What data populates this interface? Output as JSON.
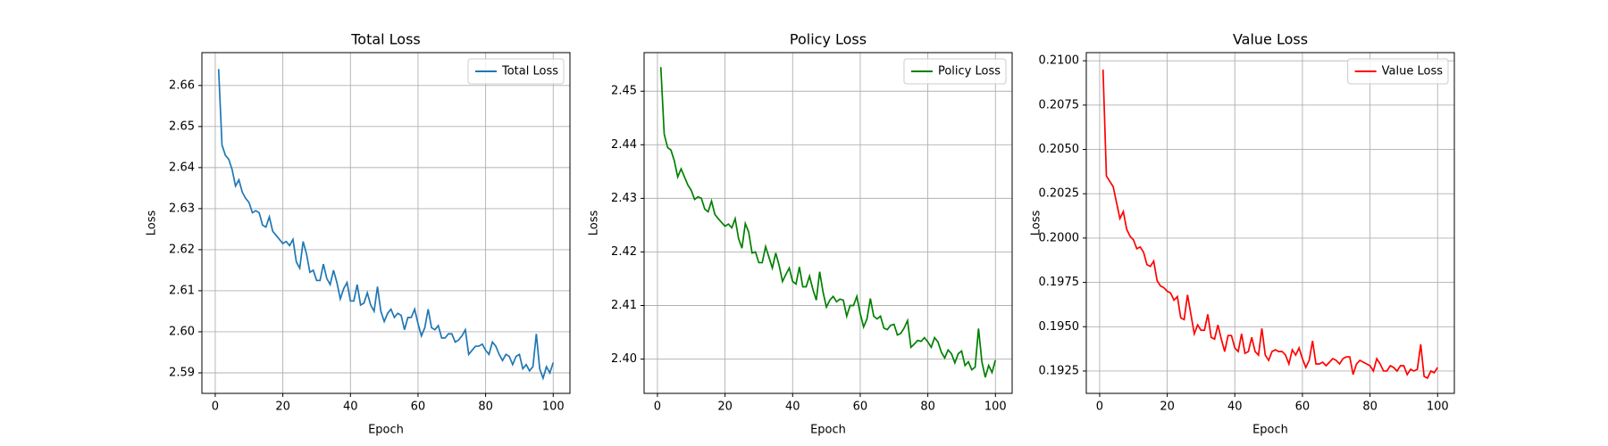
{
  "chart_data": [
    {
      "type": "line",
      "title": "Total Loss",
      "xlabel": "Epoch",
      "ylabel": "Loss",
      "x": [
        1,
        2,
        3,
        4,
        5,
        6,
        7,
        8,
        9,
        10,
        11,
        12,
        13,
        14,
        15,
        16,
        17,
        18,
        19,
        20,
        21,
        22,
        23,
        24,
        25,
        26,
        27,
        28,
        29,
        30,
        31,
        32,
        33,
        34,
        35,
        36,
        37,
        38,
        39,
        40,
        41,
        42,
        43,
        44,
        45,
        46,
        47,
        48,
        49,
        50,
        51,
        52,
        53,
        54,
        55,
        56,
        57,
        58,
        59,
        60,
        61,
        62,
        63,
        64,
        65,
        66,
        67,
        68,
        69,
        70,
        71,
        72,
        73,
        74,
        75,
        76,
        77,
        78,
        79,
        80,
        81,
        82,
        83,
        84,
        85,
        86,
        87,
        88,
        89,
        90,
        91,
        92,
        93,
        94,
        95,
        96,
        97,
        98,
        99,
        100
      ],
      "series": [
        {
          "name": "Total Loss",
          "color": "#1f77b4",
          "values": [
            2.664,
            2.6455,
            2.643,
            2.642,
            2.6395,
            2.6355,
            2.637,
            2.634,
            2.6325,
            2.6315,
            2.629,
            2.6295,
            2.629,
            2.626,
            2.6255,
            2.628,
            2.6245,
            2.6235,
            2.6225,
            2.6215,
            2.622,
            2.621,
            2.6225,
            2.617,
            2.6155,
            2.622,
            2.619,
            2.6145,
            2.615,
            2.6125,
            2.6125,
            2.6165,
            2.613,
            2.6115,
            2.615,
            2.612,
            2.608,
            2.6105,
            2.612,
            2.6075,
            2.6075,
            2.6115,
            2.6065,
            2.607,
            2.6095,
            2.6065,
            2.605,
            2.611,
            2.605,
            2.6025,
            2.6045,
            2.6055,
            2.6035,
            2.6045,
            2.604,
            2.6005,
            2.6035,
            2.6035,
            2.6055,
            2.602,
            2.599,
            2.601,
            2.6055,
            2.601,
            2.6005,
            2.6015,
            2.5985,
            2.5985,
            2.5995,
            2.5995,
            2.5975,
            2.598,
            2.599,
            2.6005,
            2.5945,
            2.5955,
            2.5965,
            2.5965,
            2.597,
            2.5955,
            2.5945,
            2.5975,
            2.5965,
            2.5945,
            2.593,
            2.5945,
            2.594,
            2.592,
            2.594,
            2.5945,
            2.591,
            2.592,
            2.5905,
            2.5915,
            2.5995,
            2.591,
            2.5887,
            2.5915,
            2.59,
            2.5925
          ]
        }
      ],
      "xlim": [
        -3.95,
        104.95
      ],
      "ylim": [
        2.585,
        2.668
      ],
      "xticks": [
        0,
        20,
        40,
        60,
        80,
        100
      ],
      "yticks": [
        2.59,
        {
          "value": 2.6,
          "label": "2.60"
        },
        2.61,
        2.62,
        2.63,
        2.64,
        2.65,
        2.66
      ],
      "grid": true,
      "legend": "upper-right"
    },
    {
      "type": "line",
      "title": "Policy Loss",
      "xlabel": "Epoch",
      "ylabel": "Loss",
      "x": [
        1,
        2,
        3,
        4,
        5,
        6,
        7,
        8,
        9,
        10,
        11,
        12,
        13,
        14,
        15,
        16,
        17,
        18,
        19,
        20,
        21,
        22,
        23,
        24,
        25,
        26,
        27,
        28,
        29,
        30,
        31,
        32,
        33,
        34,
        35,
        36,
        37,
        38,
        39,
        40,
        41,
        42,
        43,
        44,
        45,
        46,
        47,
        48,
        49,
        50,
        51,
        52,
        53,
        54,
        55,
        56,
        57,
        58,
        59,
        60,
        61,
        62,
        63,
        64,
        65,
        66,
        67,
        68,
        69,
        70,
        71,
        72,
        73,
        74,
        75,
        76,
        77,
        78,
        79,
        80,
        81,
        82,
        83,
        84,
        85,
        86,
        87,
        88,
        89,
        90,
        91,
        92,
        93,
        94,
        95,
        96,
        97,
        98,
        99,
        100
      ],
      "series": [
        {
          "name": "Policy Loss",
          "color": "#008000",
          "values": [
            2.4545,
            2.442,
            2.4395,
            2.439,
            2.437,
            2.434,
            2.4355,
            2.434,
            2.4325,
            2.4315,
            2.4298,
            2.4303,
            2.43,
            2.428,
            2.4275,
            2.4295,
            2.427,
            2.4262,
            2.4255,
            2.4248,
            2.4252,
            2.4245,
            2.4262,
            2.4225,
            2.4207,
            2.4253,
            2.4237,
            2.4198,
            2.42,
            2.418,
            2.418,
            2.421,
            2.419,
            2.417,
            2.4198,
            2.4175,
            2.4145,
            2.4158,
            2.417,
            2.4145,
            2.414,
            2.4172,
            2.4135,
            2.4135,
            2.4155,
            2.413,
            2.411,
            2.4163,
            2.4125,
            2.4097,
            2.411,
            2.4117,
            2.4107,
            2.4112,
            2.411,
            2.408,
            2.41,
            2.41,
            2.4117,
            2.4085,
            2.406,
            2.4075,
            2.4113,
            2.408,
            2.4075,
            2.408,
            2.4058,
            2.4055,
            2.4063,
            2.4065,
            2.4045,
            2.4048,
            2.4058,
            2.4072,
            2.4022,
            2.4028,
            2.4035,
            2.4033,
            2.404,
            2.4032,
            2.4022,
            2.404,
            2.4032,
            2.4013,
            2.4002,
            2.4017,
            2.401,
            2.3993,
            2.401,
            2.4015,
            2.3988,
            2.3995,
            2.398,
            2.3985,
            2.4057,
            2.3995,
            2.3966,
            2.3988,
            2.3975,
            2.3998
          ]
        }
      ],
      "xlim": [
        -3.95,
        104.95
      ],
      "ylim": [
        2.3936,
        2.4572
      ],
      "xticks": [
        0,
        20,
        40,
        60,
        80,
        100
      ],
      "yticks": [
        {
          "value": 2.4,
          "label": "2.40"
        },
        2.41,
        2.42,
        2.43,
        2.44,
        2.45
      ],
      "grid": true,
      "legend": "upper-right"
    },
    {
      "type": "line",
      "title": "Value Loss",
      "xlabel": "Epoch",
      "ylabel": "Loss",
      "x": [
        1,
        2,
        3,
        4,
        5,
        6,
        7,
        8,
        9,
        10,
        11,
        12,
        13,
        14,
        15,
        16,
        17,
        18,
        19,
        20,
        21,
        22,
        23,
        24,
        25,
        26,
        27,
        28,
        29,
        30,
        31,
        32,
        33,
        34,
        35,
        36,
        37,
        38,
        39,
        40,
        41,
        42,
        43,
        44,
        45,
        46,
        47,
        48,
        49,
        50,
        51,
        52,
        53,
        54,
        55,
        56,
        57,
        58,
        59,
        60,
        61,
        62,
        63,
        64,
        65,
        66,
        67,
        68,
        69,
        70,
        71,
        72,
        73,
        74,
        75,
        76,
        77,
        78,
        79,
        80,
        81,
        82,
        83,
        84,
        85,
        86,
        87,
        88,
        89,
        90,
        91,
        92,
        93,
        94,
        95,
        96,
        97,
        98,
        99,
        100
      ],
      "series": [
        {
          "name": "Value Loss",
          "color": "#ff0000",
          "values": [
            0.2095,
            0.2035,
            0.2032,
            0.2029,
            0.202,
            0.2011,
            0.2015,
            0.2005,
            0.2001,
            0.1999,
            0.1994,
            0.1995,
            0.1992,
            0.1985,
            0.1984,
            0.1987,
            0.1976,
            0.1973,
            0.1972,
            0.197,
            0.1969,
            0.1965,
            0.1967,
            0.1955,
            0.1954,
            0.1968,
            0.1957,
            0.1946,
            0.1951,
            0.1948,
            0.1948,
            0.1957,
            0.1944,
            0.1943,
            0.1951,
            0.1943,
            0.1936,
            0.1945,
            0.1945,
            0.1938,
            0.1936,
            0.1946,
            0.1935,
            0.1936,
            0.1944,
            0.1936,
            0.1934,
            0.1949,
            0.1934,
            0.1931,
            0.1936,
            0.1937,
            0.1936,
            0.1936,
            0.1934,
            0.1929,
            0.1937,
            0.1934,
            0.1938,
            0.1932,
            0.1927,
            0.1931,
            0.1942,
            0.1929,
            0.1929,
            0.193,
            0.1928,
            0.193,
            0.1932,
            0.1931,
            0.1929,
            0.1932,
            0.1933,
            0.1933,
            0.1923,
            0.1929,
            0.1931,
            0.193,
            0.1929,
            0.1928,
            0.1925,
            0.1932,
            0.1929,
            0.1925,
            0.1925,
            0.1928,
            0.1927,
            0.1925,
            0.1928,
            0.1928,
            0.1923,
            0.1926,
            0.1925,
            0.1926,
            0.194,
            0.1922,
            0.1921,
            0.1925,
            0.1924,
            0.1927
          ]
        }
      ],
      "xlim": [
        -3.95,
        104.95
      ],
      "ylim": [
        0.19124,
        0.21046
      ],
      "xticks": [
        0,
        20,
        40,
        60,
        80,
        100
      ],
      "yticks": [
        0.1925,
        {
          "value": 0.195,
          "label": "0.1950"
        },
        0.1975,
        {
          "value": 0.2,
          "label": "0.2000"
        },
        0.2025,
        {
          "value": 0.205,
          "label": "0.2050"
        },
        0.2075,
        {
          "value": 0.21,
          "label": "0.2100"
        }
      ],
      "grid": true,
      "legend": "upper-right"
    }
  ]
}
